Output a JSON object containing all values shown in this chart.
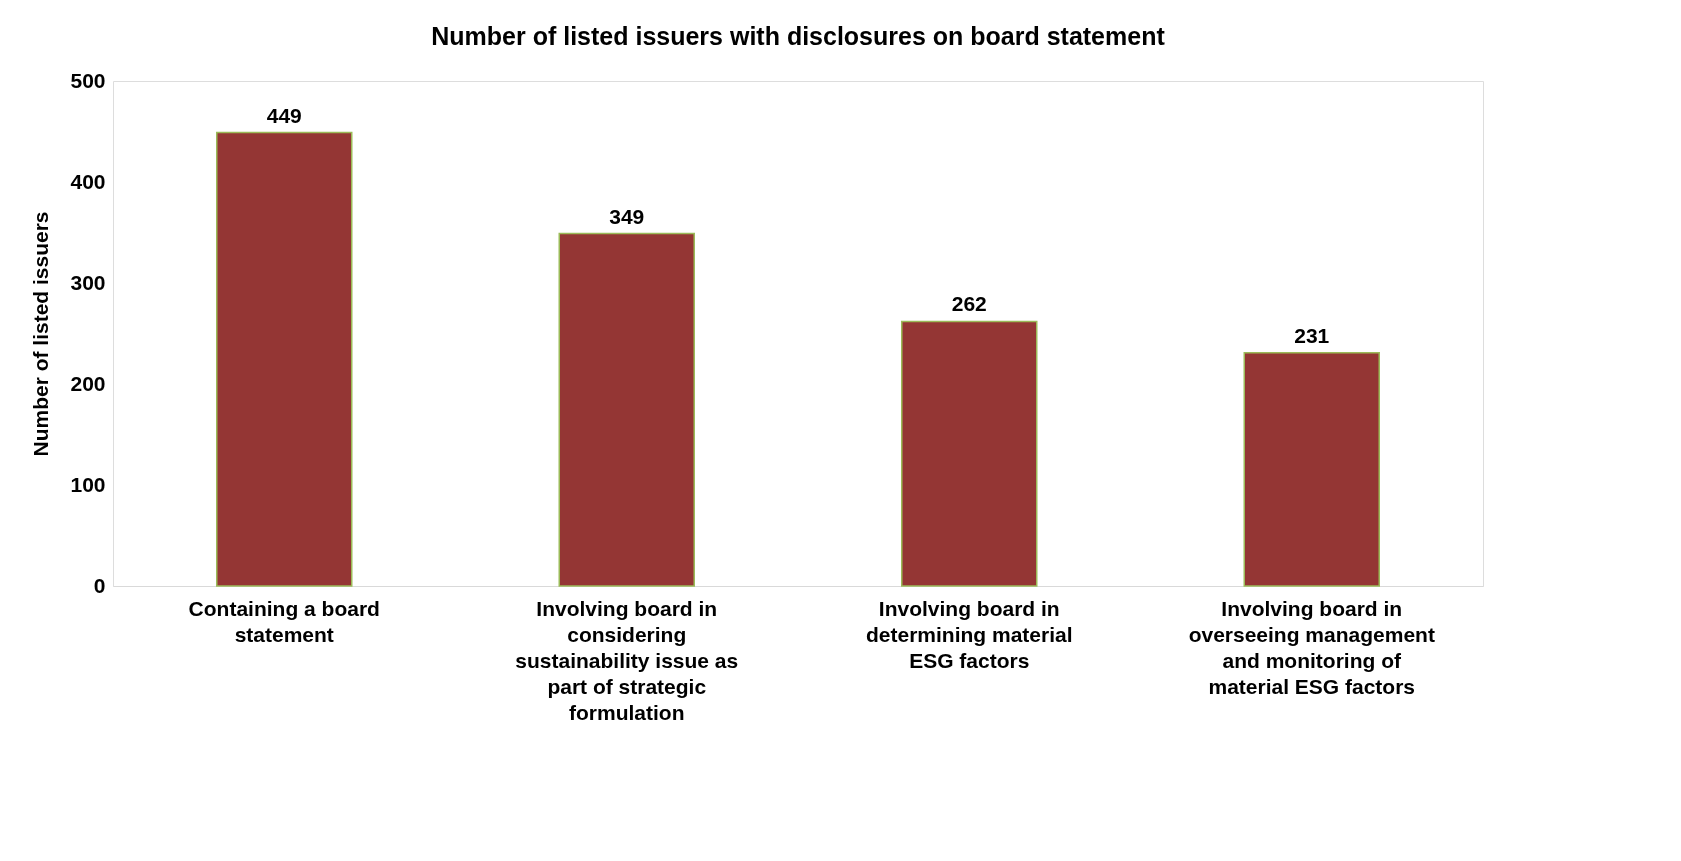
{
  "chart_data": {
    "type": "bar",
    "title": "Number of listed issuers with disclosures on board statement",
    "ylabel": "Number of listed issuers",
    "categories": [
      "Containing a board statement",
      "Involving board in considering sustainability issue as part of strategic formulation",
      "Involving board in determining material ESG factors",
      "Involving board in overseeing management and monitoring of material ESG factors"
    ],
    "values": [
      449,
      349,
      262,
      231
    ],
    "color": "#943634",
    "ylim": [
      0,
      500
    ],
    "yticks": [
      0,
      100,
      200,
      300,
      400,
      500
    ],
    "grid": false,
    "data_labels": true
  }
}
